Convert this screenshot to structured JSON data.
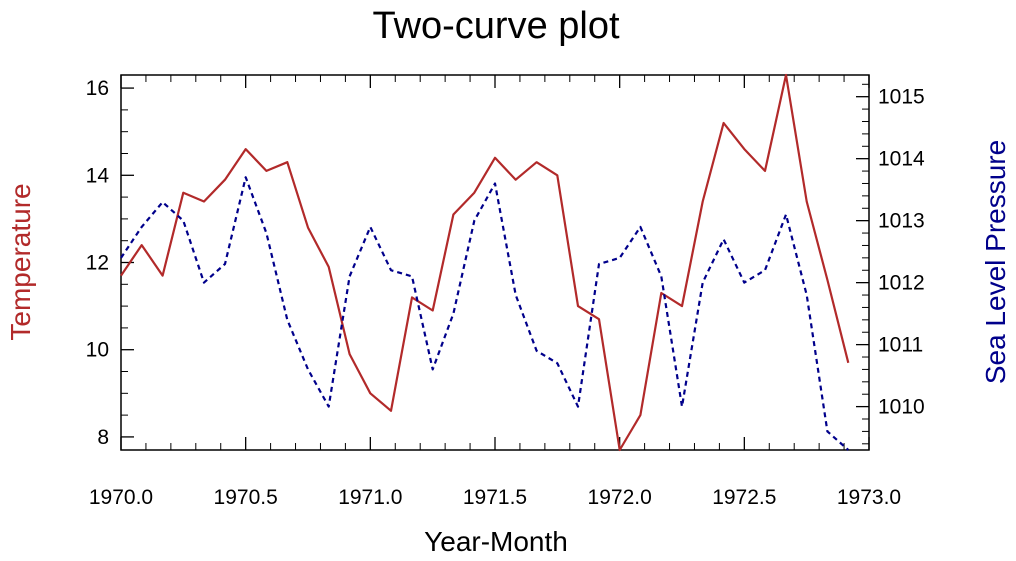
{
  "chart_data": {
    "type": "line",
    "title": "Two-curve plot",
    "xlabel": "Year-Month",
    "ylabel_left": "Temperature",
    "ylabel_right": "Sea Level Pressure",
    "xlim": [
      1970.0,
      1973.0
    ],
    "ylim_left": [
      7.7,
      16.3
    ],
    "ylim_right": [
      1009.3,
      1015.35
    ],
    "x_ticks": [
      "1970.0",
      "1970.5",
      "1971.0",
      "1971.5",
      "1972.0",
      "1972.5",
      "1973.0"
    ],
    "y_ticks_left": [
      "8",
      "10",
      "12",
      "14",
      "16"
    ],
    "y_ticks_right": [
      "1010",
      "1011",
      "1012",
      "1013",
      "1014",
      "1015"
    ],
    "grid": false,
    "colors": {
      "temperature": "#b22a2a",
      "pressure": "#00008b"
    },
    "x": [
      1970.0,
      1970.083,
      1970.167,
      1970.25,
      1970.333,
      1970.417,
      1970.5,
      1970.583,
      1970.667,
      1970.75,
      1970.833,
      1970.917,
      1971.0,
      1971.083,
      1971.167,
      1971.25,
      1971.333,
      1971.417,
      1971.5,
      1971.583,
      1971.667,
      1971.75,
      1971.833,
      1971.917,
      1972.0,
      1972.083,
      1972.167,
      1972.25,
      1972.333,
      1972.417,
      1972.5,
      1972.583,
      1972.667,
      1972.75,
      1972.833,
      1972.917
    ],
    "series": [
      {
        "axis": "left",
        "style": "solid",
        "values": [
          11.7,
          12.4,
          11.7,
          13.6,
          13.4,
          13.9,
          14.6,
          14.1,
          14.3,
          12.8,
          11.9,
          9.9,
          9.0,
          8.6,
          11.2,
          10.9,
          13.1,
          13.6,
          14.4,
          13.9,
          14.3,
          14.0,
          11.0,
          10.7,
          7.7,
          8.5,
          11.3,
          11.0,
          13.4,
          15.2,
          14.6,
          14.1,
          16.3,
          13.4,
          11.6,
          9.7
        ]
      },
      {
        "axis": "right",
        "style": "dashed",
        "values": [
          1012.4,
          1012.9,
          1013.3,
          1013.0,
          1012.0,
          1012.3,
          1013.7,
          1012.8,
          1011.4,
          1010.6,
          1010.0,
          1012.1,
          1012.9,
          1012.2,
          1012.1,
          1010.6,
          1011.5,
          1013.0,
          1013.6,
          1011.8,
          1010.9,
          1010.7,
          1010.0,
          1012.3,
          1012.4,
          1012.9,
          1012.1,
          1010.0,
          1012.0,
          1012.7,
          1012.0,
          1012.2,
          1013.1,
          1011.8,
          1009.6,
          1009.3
        ]
      }
    ]
  }
}
